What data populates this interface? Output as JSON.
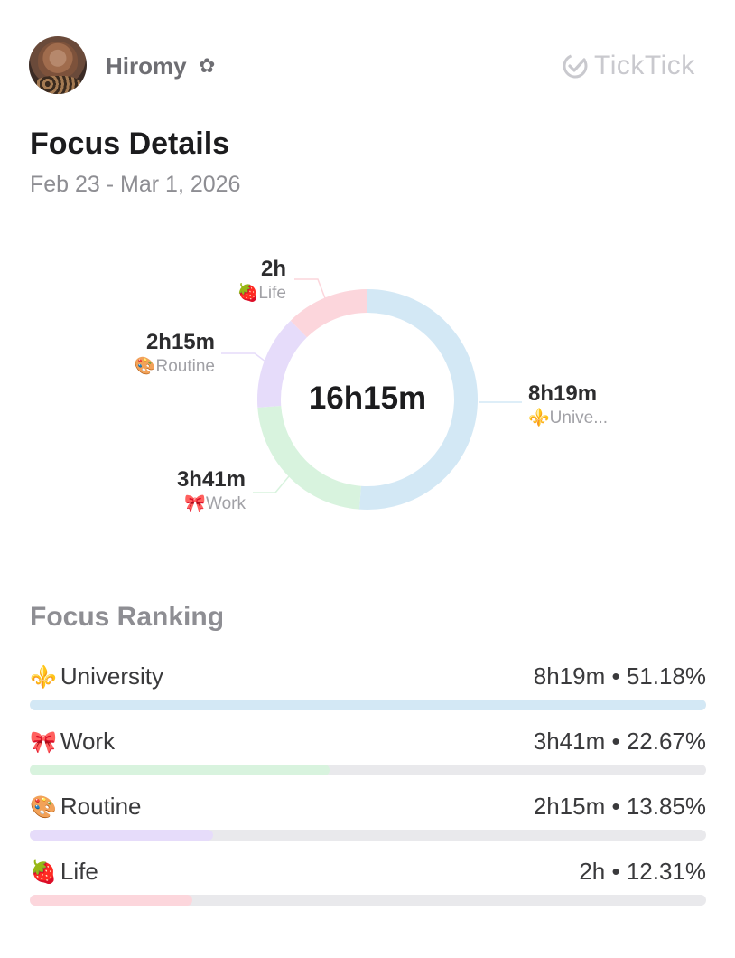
{
  "header": {
    "username": "Hiromy",
    "username_badge": "✿",
    "brand": "TickTick",
    "brand_icon": "check-circle-icon"
  },
  "title": "Focus Details",
  "date_range": "Feb 23 - Mar 1, 2026",
  "chart_data": {
    "type": "pie",
    "center_label": "16h15m",
    "slices": [
      {
        "name": "University",
        "label": "Unive...",
        "emoji": "⚜️",
        "value_text": "8h19m",
        "minutes": 499,
        "color": "#d3e8f5"
      },
      {
        "name": "Work",
        "label": "Work",
        "emoji": "🎀",
        "value_text": "3h41m",
        "minutes": 221,
        "color": "#d8f3de"
      },
      {
        "name": "Routine",
        "label": "Routine",
        "emoji": "🎨",
        "value_text": "2h15m",
        "minutes": 135,
        "color": "#e6dcfa"
      },
      {
        "name": "Life",
        "label": "Life",
        "emoji": "🍓",
        "value_text": "2h",
        "minutes": 120,
        "color": "#fcd6dc"
      }
    ]
  },
  "ranking": {
    "title": "Focus Ranking",
    "items": [
      {
        "emoji": "⚜️",
        "name": "University",
        "stat": "8h19m • 51.18%",
        "fraction": 1.0,
        "color": "#d3e8f5"
      },
      {
        "emoji": "🎀",
        "name": "Work",
        "stat": "3h41m • 22.67%",
        "fraction": 0.443,
        "color": "#d8f3de"
      },
      {
        "emoji": "🎨",
        "name": "Routine",
        "stat": "2h15m • 13.85%",
        "fraction": 0.271,
        "color": "#e6dcfa"
      },
      {
        "emoji": "🍓",
        "name": "Life",
        "stat": "2h • 12.31%",
        "fraction": 0.24,
        "color": "#fcd6dc"
      }
    ]
  }
}
